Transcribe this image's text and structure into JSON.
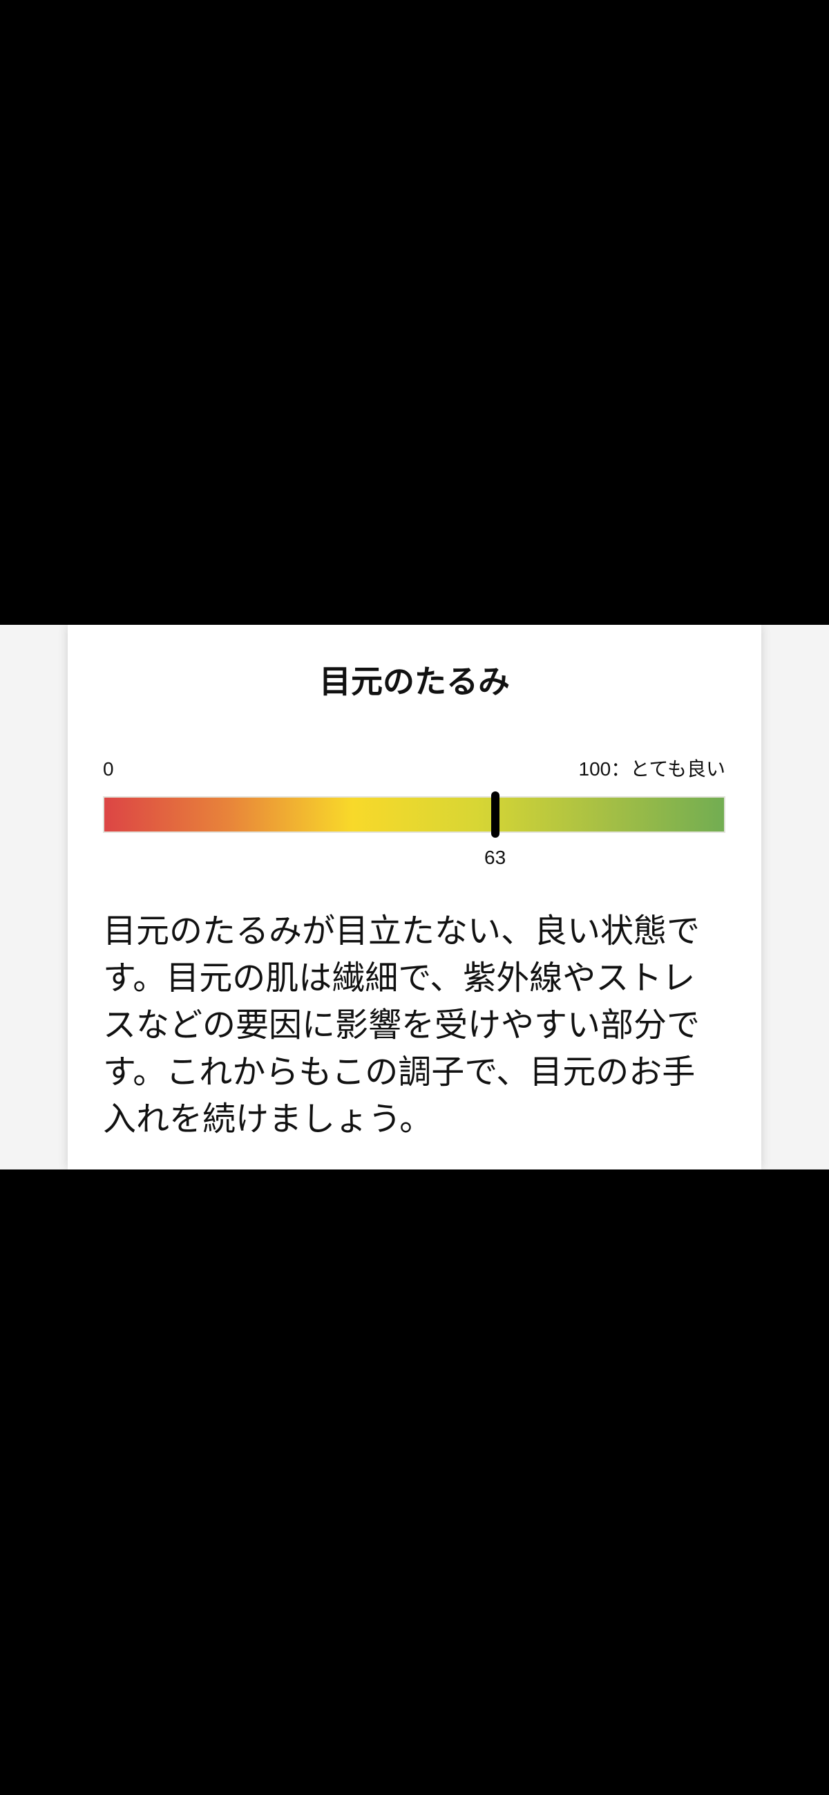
{
  "card": {
    "title": "目元のたるみ",
    "scale": {
      "min_label": "0",
      "max_label": "100：とても良い",
      "min": 0,
      "max": 100,
      "value": 63,
      "value_label": "63",
      "gradient_colors": [
        "#dc4545",
        "#e8843a",
        "#f8d92a",
        "#d8d634",
        "#a8c044",
        "#72ad52"
      ]
    },
    "description": "目元のたるみが目立たない、良い状態です。目元の肌は繊細で、紫外線やストレスなどの要因に影響を受けやすい部分です。これからもこの調子で、目元のお手入れを続けましょう。"
  }
}
